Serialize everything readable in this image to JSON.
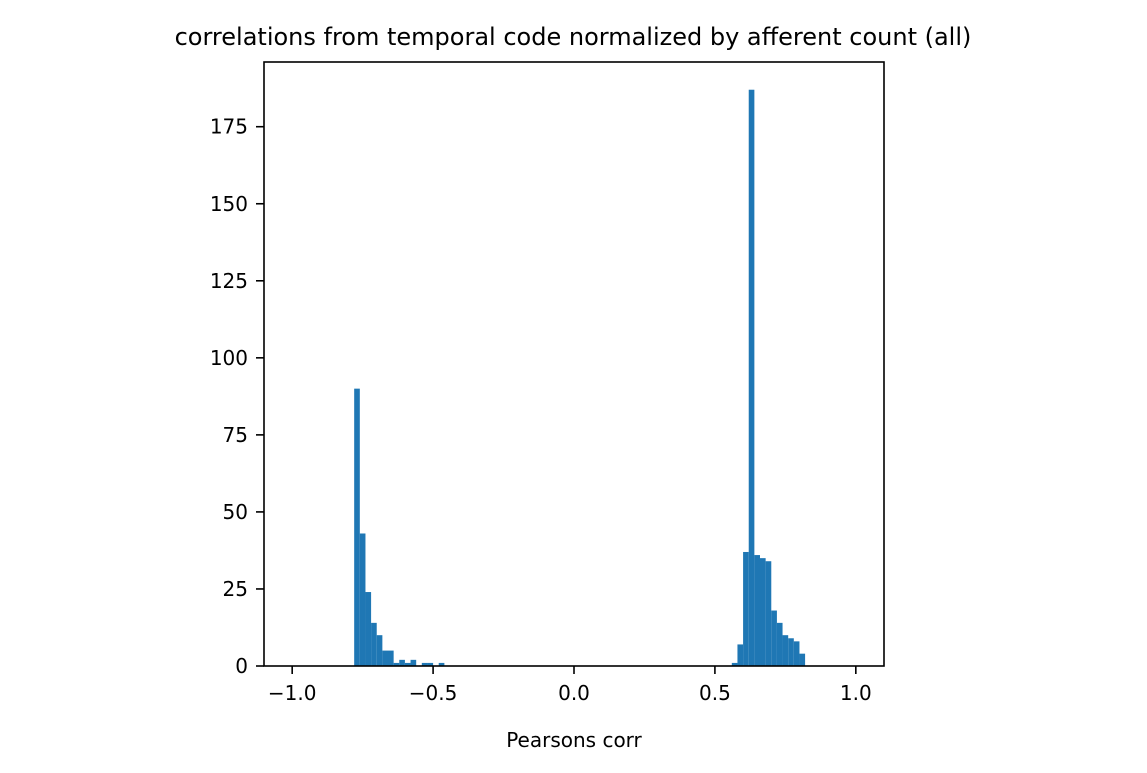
{
  "chart_data": {
    "type": "bar",
    "title": "correlations from temporal code normalized by afferent count (all)",
    "xlabel": "Pearsons corr",
    "ylabel": "",
    "xlim": [
      -1.1,
      1.1
    ],
    "ylim": [
      0,
      196
    ],
    "xticks": [
      -1.0,
      -0.5,
      0.0,
      0.5,
      1.0
    ],
    "xtick_labels": [
      "−1.0",
      "−0.5",
      "0.0",
      "0.5",
      "1.0"
    ],
    "yticks": [
      0,
      25,
      50,
      75,
      100,
      125,
      150,
      175
    ],
    "ytick_labels": [
      "0",
      "25",
      "50",
      "75",
      "100",
      "125",
      "150",
      "175"
    ],
    "grid": false,
    "color": "#1f77b4",
    "bins": [
      {
        "x0": -0.78,
        "x1": -0.76,
        "count": 90
      },
      {
        "x0": -0.76,
        "x1": -0.74,
        "count": 43
      },
      {
        "x0": -0.74,
        "x1": -0.72,
        "count": 24
      },
      {
        "x0": -0.72,
        "x1": -0.7,
        "count": 14
      },
      {
        "x0": -0.7,
        "x1": -0.68,
        "count": 10
      },
      {
        "x0": -0.68,
        "x1": -0.66,
        "count": 5
      },
      {
        "x0": -0.66,
        "x1": -0.64,
        "count": 5
      },
      {
        "x0": -0.64,
        "x1": -0.62,
        "count": 1
      },
      {
        "x0": -0.62,
        "x1": -0.6,
        "count": 2
      },
      {
        "x0": -0.6,
        "x1": -0.58,
        "count": 1
      },
      {
        "x0": -0.58,
        "x1": -0.56,
        "count": 2
      },
      {
        "x0": -0.54,
        "x1": -0.52,
        "count": 1
      },
      {
        "x0": -0.52,
        "x1": -0.5,
        "count": 1
      },
      {
        "x0": -0.48,
        "x1": -0.46,
        "count": 1
      },
      {
        "x0": 0.56,
        "x1": 0.58,
        "count": 1
      },
      {
        "x0": 0.58,
        "x1": 0.6,
        "count": 7
      },
      {
        "x0": 0.6,
        "x1": 0.62,
        "count": 37
      },
      {
        "x0": 0.62,
        "x1": 0.64,
        "count": 187
      },
      {
        "x0": 0.64,
        "x1": 0.66,
        "count": 36
      },
      {
        "x0": 0.66,
        "x1": 0.68,
        "count": 35
      },
      {
        "x0": 0.68,
        "x1": 0.7,
        "count": 34
      },
      {
        "x0": 0.7,
        "x1": 0.72,
        "count": 18
      },
      {
        "x0": 0.72,
        "x1": 0.74,
        "count": 14
      },
      {
        "x0": 0.74,
        "x1": 0.76,
        "count": 10
      },
      {
        "x0": 0.76,
        "x1": 0.78,
        "count": 9
      },
      {
        "x0": 0.78,
        "x1": 0.8,
        "count": 8
      },
      {
        "x0": 0.8,
        "x1": 0.82,
        "count": 4
      }
    ]
  }
}
